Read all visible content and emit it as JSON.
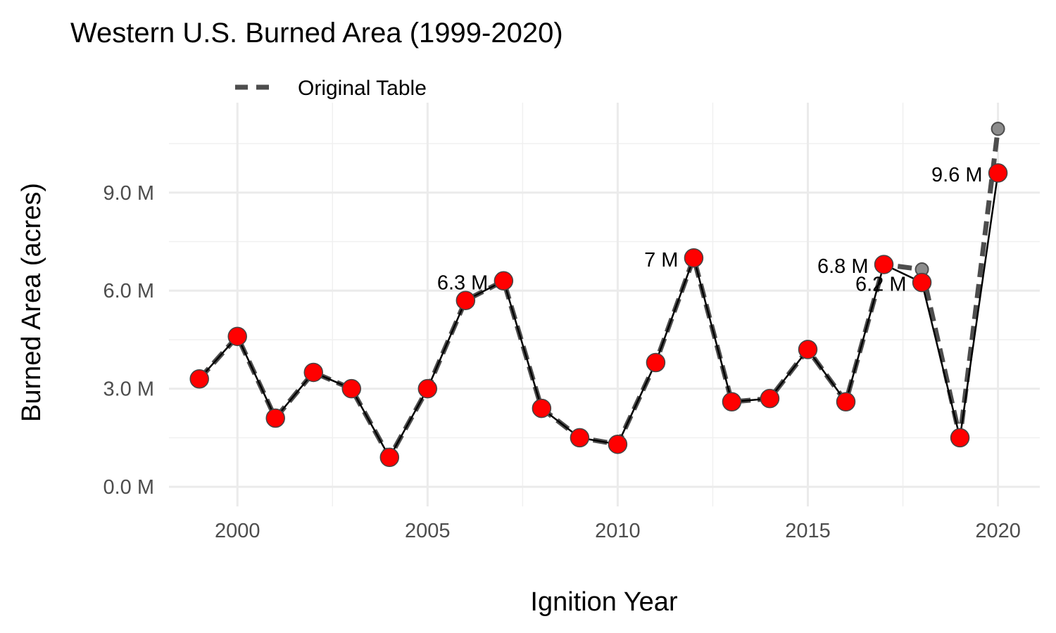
{
  "chart_data": {
    "type": "line",
    "title": "Western U.S. Burned Area (1999-2020)",
    "xlabel": "Ignition Year",
    "ylabel": "Burned Area (acres)",
    "xlim": [
      1998.2,
      2021.1
    ],
    "ylim": [
      -0.6,
      11.75
    ],
    "x_ticks": [
      2000,
      2005,
      2010,
      2015,
      2020
    ],
    "x_tick_labels": [
      "2000",
      "2005",
      "2010",
      "2015",
      "2020"
    ],
    "y_ticks": [
      0,
      3,
      6,
      9
    ],
    "y_tick_labels": [
      "0.0 M",
      "3.0 M",
      "6.0 M",
      "9.0 M"
    ],
    "grid": true,
    "legend": {
      "position": "top",
      "entries": [
        "Original Table"
      ]
    },
    "series": [
      {
        "name": "Original Table",
        "style": "dashed",
        "color": "#4d4d4d",
        "x": [
          1999,
          2000,
          2001,
          2002,
          2003,
          2004,
          2005,
          2006,
          2007,
          2008,
          2009,
          2010,
          2011,
          2012,
          2013,
          2014,
          2015,
          2016,
          2017,
          2018,
          2019,
          2020
        ],
        "y": [
          3.3,
          4.6,
          2.1,
          3.5,
          3.0,
          0.9,
          3.0,
          5.7,
          6.3,
          2.4,
          1.5,
          1.3,
          3.8,
          7.0,
          2.6,
          2.7,
          4.2,
          2.6,
          6.8,
          6.65,
          1.5,
          10.95
        ]
      },
      {
        "style": "solid",
        "color": "#000000",
        "marker_fill": "#ff0000",
        "x": [
          1999,
          2000,
          2001,
          2002,
          2003,
          2004,
          2005,
          2006,
          2007,
          2008,
          2009,
          2010,
          2011,
          2012,
          2013,
          2014,
          2015,
          2016,
          2017,
          2018,
          2019,
          2020
        ],
        "y": [
          3.3,
          4.6,
          2.1,
          3.5,
          3.0,
          0.9,
          3.0,
          5.7,
          6.3,
          2.4,
          1.5,
          1.3,
          3.8,
          7.0,
          2.6,
          2.7,
          4.2,
          2.6,
          6.8,
          6.25,
          1.5,
          9.6
        ]
      }
    ],
    "annotations": [
      {
        "text": "6.3 M",
        "x": 2007,
        "y": 6.3
      },
      {
        "text": "7 M",
        "x": 2012,
        "y": 7.0
      },
      {
        "text": "6.8 M",
        "x": 2017,
        "y": 6.8
      },
      {
        "text": "6.2 M",
        "x": 2018,
        "y": 6.25
      },
      {
        "text": "9.6 M",
        "x": 2020,
        "y": 9.6
      }
    ]
  }
}
